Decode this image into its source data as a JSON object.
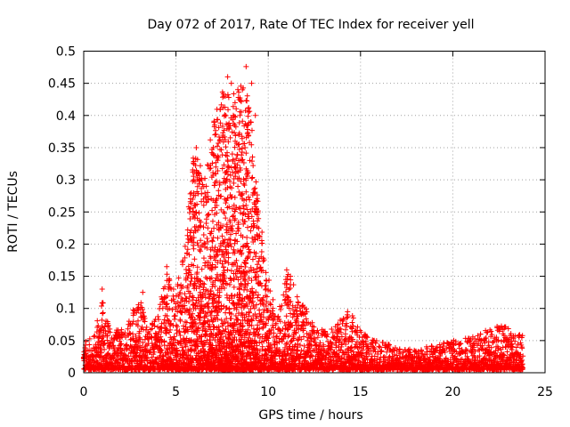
{
  "chart_data": {
    "type": "scatter",
    "title": "Day 072 of 2017, Rate Of TEC Index for receiver yell",
    "xlabel": "GPS time / hours",
    "ylabel": "ROTI / TECUs",
    "xlim": [
      0,
      25
    ],
    "ylim": [
      0,
      0.5
    ],
    "xticks": [
      "0",
      "5",
      "10",
      "15",
      "20",
      "25"
    ],
    "yticks": [
      "0",
      "0.05",
      "0.1",
      "0.15",
      "0.2",
      "0.25",
      "0.3",
      "0.35",
      "0.4",
      "0.45",
      "0.5"
    ],
    "grid": true,
    "marker": "+",
    "color": "#ff0000",
    "series": [
      {
        "name": "ROTI",
        "envelope": [
          [
            0.0,
            0.045
          ],
          [
            0.5,
            0.05
          ],
          [
            1.0,
            0.11
          ],
          [
            1.5,
            0.06
          ],
          [
            2.0,
            0.065
          ],
          [
            2.5,
            0.08
          ],
          [
            3.0,
            0.12
          ],
          [
            3.5,
            0.07
          ],
          [
            4.0,
            0.08
          ],
          [
            4.5,
            0.16
          ],
          [
            5.0,
            0.12
          ],
          [
            5.5,
            0.2
          ],
          [
            6.0,
            0.35
          ],
          [
            6.5,
            0.3
          ],
          [
            7.0,
            0.38
          ],
          [
            7.5,
            0.44
          ],
          [
            8.0,
            0.42
          ],
          [
            8.5,
            0.46
          ],
          [
            9.0,
            0.42
          ],
          [
            9.5,
            0.25
          ],
          [
            10.0,
            0.15
          ],
          [
            10.5,
            0.08
          ],
          [
            11.0,
            0.17
          ],
          [
            11.5,
            0.12
          ],
          [
            12.0,
            0.1
          ],
          [
            12.5,
            0.07
          ],
          [
            13.0,
            0.06
          ],
          [
            13.5,
            0.065
          ],
          [
            14.0,
            0.08
          ],
          [
            14.5,
            0.09
          ],
          [
            15.0,
            0.06
          ],
          [
            15.5,
            0.05
          ],
          [
            16.0,
            0.045
          ],
          [
            17.0,
            0.035
          ],
          [
            18.0,
            0.03
          ],
          [
            19.0,
            0.04
          ],
          [
            20.0,
            0.045
          ],
          [
            21.0,
            0.05
          ],
          [
            22.0,
            0.065
          ],
          [
            22.5,
            0.07
          ],
          [
            23.0,
            0.065
          ],
          [
            23.8,
            0.055
          ]
        ],
        "points": [
          [
            8.8,
            0.476
          ],
          [
            7.8,
            0.46
          ],
          [
            8.0,
            0.45
          ],
          [
            9.1,
            0.45
          ],
          [
            8.6,
            0.44
          ],
          [
            7.6,
            0.43
          ],
          [
            8.2,
            0.42
          ],
          [
            7.4,
            0.41
          ],
          [
            9.3,
            0.4
          ],
          [
            8.9,
            0.385
          ],
          [
            7.1,
            0.385
          ],
          [
            8.4,
            0.37
          ],
          [
            6.1,
            0.35
          ],
          [
            7.0,
            0.34
          ],
          [
            9.0,
            0.33
          ],
          [
            6.4,
            0.3
          ],
          [
            11.0,
            0.16
          ],
          [
            11.2,
            0.15
          ],
          [
            4.5,
            0.165
          ],
          [
            1.0,
            0.13
          ],
          [
            3.2,
            0.125
          ],
          [
            14.3,
            0.095
          ],
          [
            22.4,
            0.072
          ],
          [
            21.5,
            0.06
          ]
        ]
      }
    ]
  }
}
